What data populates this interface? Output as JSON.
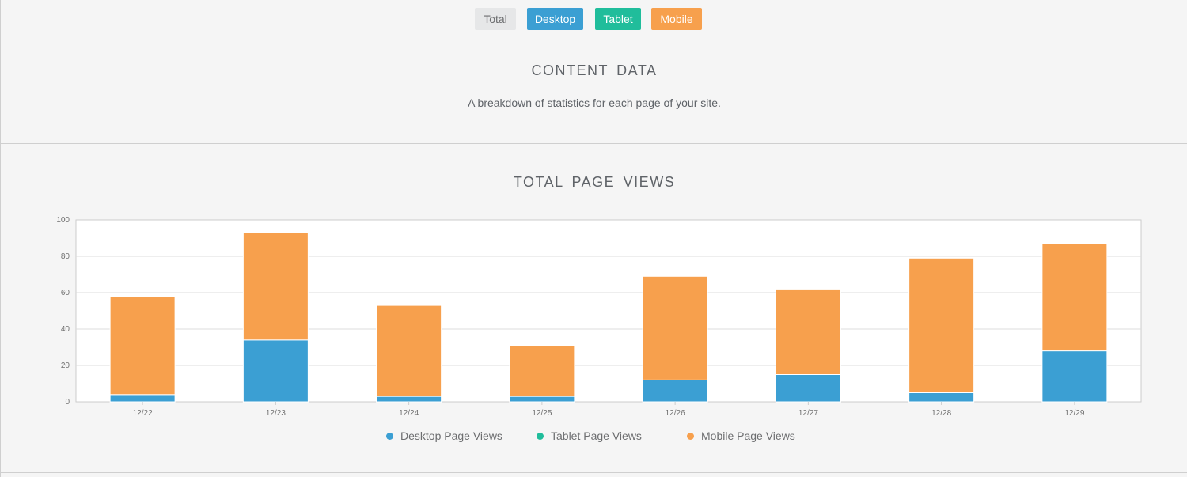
{
  "filters": [
    {
      "label": "Total",
      "color": "#e6e7e8"
    },
    {
      "label": "Desktop",
      "color": "#3b9fd3"
    },
    {
      "label": "Tablet",
      "color": "#20bd9b"
    },
    {
      "label": "Mobile",
      "color": "#f7a04d"
    }
  ],
  "content": {
    "title": "CONTENT  DATA",
    "subtitle": "A breakdown of statistics for each page of your site."
  },
  "chart_data": {
    "type": "bar",
    "stacked": true,
    "title": "TOTAL  PAGE  VIEWS",
    "xlabel": "",
    "ylabel": "",
    "categories": [
      "12/22",
      "12/23",
      "12/24",
      "12/25",
      "12/26",
      "12/27",
      "12/28",
      "12/29"
    ],
    "series": [
      {
        "name": "Desktop Page Views",
        "color": "#3b9fd3",
        "values": [
          4,
          34,
          3,
          3,
          12,
          15,
          5,
          28
        ]
      },
      {
        "name": "Tablet Page Views",
        "color": "#20bd9b",
        "values": [
          0,
          0,
          0,
          0,
          0,
          0,
          0,
          0
        ]
      },
      {
        "name": "Mobile Page Views",
        "color": "#f7a04d",
        "values": [
          54,
          59,
          50,
          28,
          57,
          47,
          74,
          59
        ]
      }
    ],
    "ylim": [
      0,
      100
    ],
    "yticks": [
      0,
      20,
      40,
      60,
      80,
      100
    ],
    "grid": true,
    "legend_position": "bottom"
  }
}
